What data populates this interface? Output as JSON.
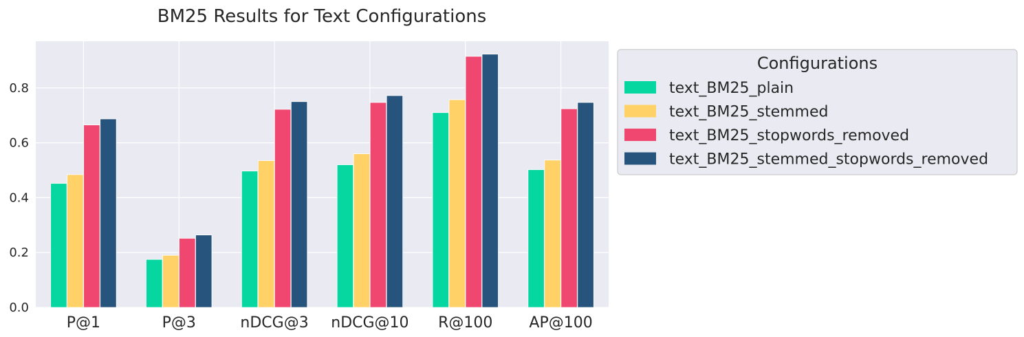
{
  "chart_data": {
    "type": "bar",
    "title": "BM25 Results for Text Configurations",
    "xlabel": "",
    "ylabel": "",
    "categories": [
      "P@1",
      "P@3",
      "nDCG@3",
      "nDCG@10",
      "R@100",
      "AP@100"
    ],
    "ylim": [
      0,
      0.97
    ],
    "yticks": [
      0.0,
      0.2,
      0.4,
      0.6,
      0.8
    ],
    "ytick_labels": [
      "0.0",
      "0.2",
      "0.4",
      "0.6",
      "0.8"
    ],
    "grid": true,
    "legend": {
      "title": "Configurations",
      "placement": "outside-upper-right"
    },
    "series": [
      {
        "name": "text_BM25_plain",
        "color": "#06d6a0",
        "values": [
          0.452,
          0.175,
          0.497,
          0.52,
          0.71,
          0.502
        ]
      },
      {
        "name": "text_BM25_stemmed",
        "color": "#ffd166",
        "values": [
          0.484,
          0.19,
          0.535,
          0.56,
          0.757,
          0.537
        ]
      },
      {
        "name": "text_BM25_stopwords_removed",
        "color": "#ef476f",
        "values": [
          0.665,
          0.252,
          0.722,
          0.747,
          0.915,
          0.724
        ]
      },
      {
        "name": "text_BM25_stemmed_stopwords_removed",
        "color": "#26547c",
        "values": [
          0.687,
          0.264,
          0.75,
          0.772,
          0.923,
          0.747
        ]
      }
    ]
  },
  "style": {
    "plot_background": "#eaeaf2",
    "grid_color": "#ffffff",
    "legend_background": "#eaeaf2",
    "legend_border": "#cccccc"
  }
}
